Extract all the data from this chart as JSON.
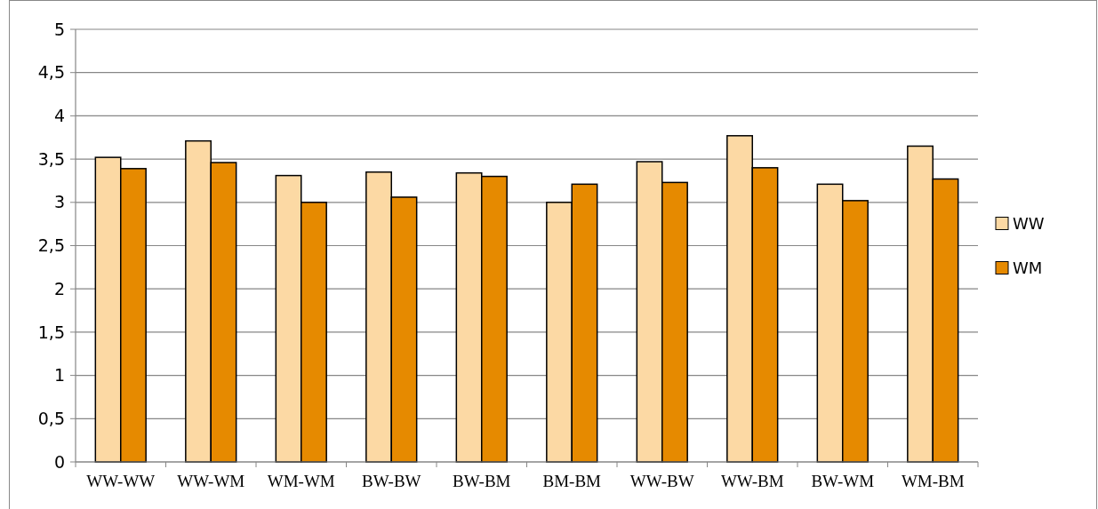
{
  "chart_data": {
    "type": "bar",
    "categories": [
      "WW-WW",
      "WW-WM",
      "WM-WM",
      "BW-BW",
      "BW-BM",
      "BM-BM",
      "WW-BW",
      "WW-BM",
      "BW-WM",
      "WM-BM"
    ],
    "series": [
      {
        "name": "WW",
        "color": "#fcd9a4",
        "values": [
          3.52,
          3.71,
          3.31,
          3.35,
          3.34,
          3.0,
          3.47,
          3.77,
          3.21,
          3.65
        ]
      },
      {
        "name": "WM",
        "color": "#e68a00",
        "values": [
          3.39,
          3.46,
          3.0,
          3.06,
          3.3,
          3.21,
          3.23,
          3.4,
          3.02,
          3.27
        ]
      }
    ],
    "ylim": [
      0,
      5
    ],
    "yticks": [
      0,
      {
        "value": 0.5,
        "label": "0,5"
      },
      1,
      {
        "value": 1.5,
        "label": "1,5"
      },
      2,
      {
        "value": 2.5,
        "label": "2,5"
      },
      3,
      {
        "value": 3.5,
        "label": "3,5"
      },
      4,
      {
        "value": 4.5,
        "label": "4,5"
      },
      5
    ],
    "grid": "y",
    "legend": "right"
  }
}
